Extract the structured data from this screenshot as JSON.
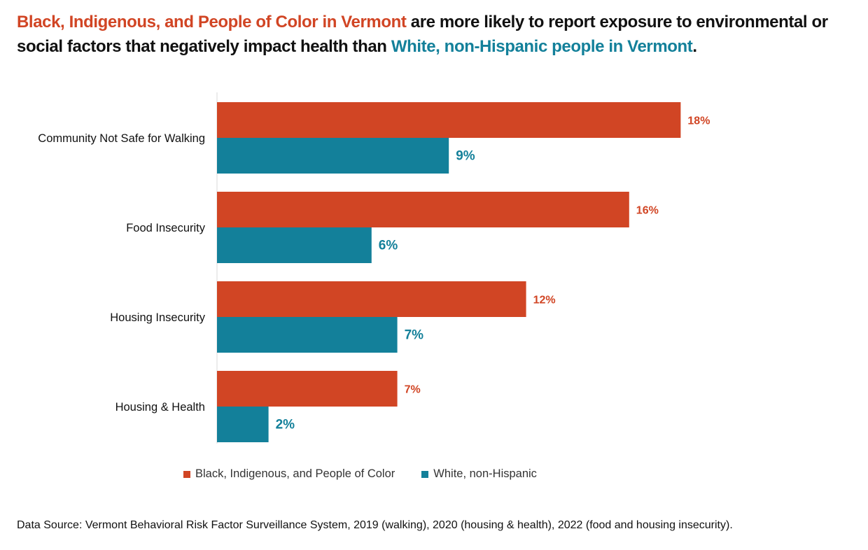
{
  "title": {
    "part1": "Black, Indigenous, and People of Color in Vermont",
    "part2": " are more likely to report exposure to environmental or social factors that negatively impact health than ",
    "part3": "White, non-Hispanic people in Vermont",
    "part4": "."
  },
  "colors": {
    "bipoc": "#D14524",
    "white": "#13809A"
  },
  "chart_data": {
    "type": "bar",
    "orientation": "horizontal",
    "categories": [
      "Community Not Safe for Walking",
      "Food Insecurity",
      "Housing Insecurity",
      "Housing & Health"
    ],
    "series": [
      {
        "name": "Black, Indigenous, and People of Color",
        "values": [
          18,
          16,
          12,
          7
        ],
        "labels": [
          "18%",
          "16%",
          "12%",
          "7%"
        ]
      },
      {
        "name": "White, non-Hispanic",
        "values": [
          9,
          6,
          7,
          2
        ],
        "labels": [
          "9%",
          "6%",
          "7%",
          "2%"
        ]
      }
    ],
    "xlim": [
      0,
      18
    ],
    "unit": "%",
    "legend_position": "bottom"
  },
  "legend": {
    "bipoc_label": "Black, Indigenous, and People of Color",
    "white_label": "White, non-Hispanic"
  },
  "source": "Data Source: Vermont Behavioral Risk Factor Surveillance System, 2019 (walking), 2020 (housing & health), 2022 (food and housing insecurity)."
}
